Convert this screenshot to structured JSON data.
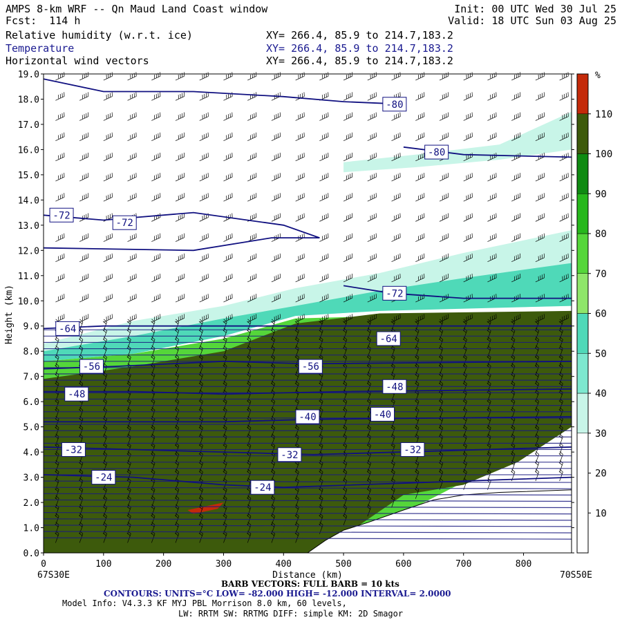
{
  "header": {
    "title": "AMPS 8-km WRF -- Qn Maud Land Coast window",
    "init": "Init: 00 UTC Wed 30 Jul 25",
    "fcst": "Fcst:  114 h",
    "valid": "Valid: 18 UTC Sun 03 Aug 25",
    "fields": [
      {
        "name": "Relative humidity (w.r.t. ice)",
        "xy": "XY= 266.4, 85.9 to 214.7,183.2"
      },
      {
        "name": "Temperature",
        "xy": "XY= 266.4, 85.9 to 214.7,183.2"
      },
      {
        "name": "Horizontal wind vectors",
        "xy": "XY= 266.4, 85.9 to 214.7,183.2"
      }
    ]
  },
  "chart_data": {
    "type": "heatmap",
    "xlabel": "Distance (km)",
    "ylabel": "Height (km)",
    "xlim": [
      0,
      880
    ],
    "ylim": [
      0,
      19
    ],
    "x_ticks": [
      0,
      100,
      200,
      300,
      400,
      500,
      600,
      700,
      800
    ],
    "y_ticks": [
      "0.0",
      "1.0",
      "2.0",
      "3.0",
      "4.0",
      "5.0",
      "6.0",
      "7.0",
      "8.0",
      "9.0",
      "10.0",
      "11.0",
      "12.0",
      "13.0",
      "14.0",
      "15.0",
      "16.0",
      "17.0",
      "18.0",
      "19.0"
    ],
    "x_start_label": "67S30E",
    "x_end_label": "70S50E",
    "colorbar": {
      "unit": "%",
      "tick_labels": [
        "10",
        "20",
        "30",
        "40",
        "50",
        "60",
        "70",
        "80",
        "90",
        "100",
        "110"
      ],
      "bins": [
        {
          "from": 0,
          "to": 30,
          "color": "#ffffff"
        },
        {
          "from": 30,
          "to": 40,
          "color": "#c8f5e8"
        },
        {
          "from": 40,
          "to": 50,
          "color": "#7de8cf"
        },
        {
          "from": 50,
          "to": 60,
          "color": "#4fd9b8"
        },
        {
          "from": 60,
          "to": 70,
          "color": "#8fe66a"
        },
        {
          "from": 70,
          "to": 80,
          "color": "#55d63a"
        },
        {
          "from": 80,
          "to": 90,
          "color": "#27b71c"
        },
        {
          "from": 90,
          "to": 100,
          "color": "#0f8a12"
        },
        {
          "from": 100,
          "to": 110,
          "color": "#3d5a0c"
        },
        {
          "from": 110,
          "to": 120,
          "color": "#c42a0a"
        }
      ]
    },
    "rh_regions": [
      {
        "level": 30,
        "color": "#c8f5e8",
        "points": [
          [
            0,
            8.3
          ],
          [
            150,
            9.2
          ],
          [
            300,
            9.8
          ],
          [
            420,
            10.5
          ],
          [
            560,
            11.1
          ],
          [
            700,
            11.9
          ],
          [
            880,
            12.8
          ],
          [
            880,
            9.8
          ],
          [
            700,
            9.7
          ],
          [
            560,
            9.6
          ],
          [
            420,
            9.4
          ],
          [
            300,
            8.7
          ],
          [
            150,
            8.1
          ],
          [
            0,
            7.9
          ]
        ]
      },
      {
        "level": 30,
        "color": "#c8f5e8",
        "points": [
          [
            500,
            15.5
          ],
          [
            620,
            15.8
          ],
          [
            760,
            16.2
          ],
          [
            880,
            17.5
          ],
          [
            880,
            16.0
          ],
          [
            760,
            15.6
          ],
          [
            620,
            15.3
          ],
          [
            500,
            15.1
          ]
        ]
      },
      {
        "level": 50,
        "color": "#4fd9b8",
        "points": [
          [
            0,
            8.0
          ],
          [
            150,
            8.6
          ],
          [
            300,
            9.3
          ],
          [
            420,
            9.8
          ],
          [
            560,
            10.4
          ],
          [
            700,
            10.9
          ],
          [
            880,
            11.5
          ],
          [
            880,
            9.8
          ],
          [
            560,
            9.6
          ],
          [
            420,
            9.4
          ],
          [
            300,
            8.6
          ],
          [
            150,
            7.9
          ],
          [
            0,
            7.6
          ]
        ]
      },
      {
        "level": 70,
        "color": "#55d63a",
        "points": [
          [
            0,
            7.6
          ],
          [
            150,
            7.9
          ],
          [
            300,
            8.5
          ],
          [
            420,
            9.3
          ],
          [
            880,
            9.6
          ],
          [
            880,
            5.0
          ],
          [
            470,
            0.0
          ],
          [
            0,
            0.0
          ]
        ]
      },
      {
        "level": 100,
        "color": "#3d5a0c",
        "points": [
          [
            0,
            6.9
          ],
          [
            150,
            7.4
          ],
          [
            300,
            8.0
          ],
          [
            420,
            9.1
          ],
          [
            560,
            9.5
          ],
          [
            880,
            9.6
          ],
          [
            880,
            5.0
          ],
          [
            790,
            3.6
          ],
          [
            700,
            2.7
          ],
          [
            600,
            2.3
          ],
          [
            520,
            1.0
          ],
          [
            480,
            0.4
          ],
          [
            440,
            0.0
          ],
          [
            0,
            0.0
          ]
        ]
      },
      {
        "level": 110,
        "color": "#c42a0a",
        "points": [
          [
            240,
            1.7
          ],
          [
            280,
            1.9
          ],
          [
            300,
            2.0
          ],
          [
            290,
            1.75
          ],
          [
            250,
            1.55
          ]
        ]
      }
    ],
    "terrain": [
      [
        440,
        0.0
      ],
      [
        470,
        0.5
      ],
      [
        500,
        0.9
      ],
      [
        540,
        1.2
      ],
      [
        600,
        1.7
      ],
      [
        650,
        2.1
      ],
      [
        700,
        2.3
      ],
      [
        760,
        2.4
      ],
      [
        880,
        2.5
      ],
      [
        880,
        0.0
      ]
    ],
    "temperature_contours": [
      {
        "label": "-80",
        "points": [
          [
            0,
            18.8
          ],
          [
            100,
            18.3
          ],
          [
            250,
            18.3
          ],
          [
            400,
            18.1
          ],
          [
            500,
            17.9
          ],
          [
            600,
            17.8
          ]
        ]
      },
      {
        "label": "-80",
        "points": [
          [
            600,
            16.1
          ],
          [
            700,
            15.8
          ],
          [
            880,
            15.7
          ]
        ]
      },
      {
        "label": "-72",
        "points": [
          [
            0,
            13.4
          ],
          [
            100,
            13.2
          ],
          [
            250,
            13.5
          ],
          [
            400,
            13.0
          ],
          [
            460,
            12.5
          ],
          [
            380,
            12.5
          ],
          [
            250,
            12.0
          ],
          [
            0,
            12.1
          ]
        ]
      },
      {
        "label": "-72",
        "points": [
          [
            500,
            10.6
          ],
          [
            580,
            10.3
          ],
          [
            700,
            10.1
          ],
          [
            880,
            10.1
          ]
        ]
      },
      {
        "label": "-64",
        "points": [
          [
            0,
            8.9
          ],
          [
            100,
            9.0
          ],
          [
            250,
            9.0
          ],
          [
            400,
            9.0
          ],
          [
            500,
            9.0
          ],
          [
            880,
            9.0
          ]
        ]
      },
      {
        "label": "-56",
        "points": [
          [
            0,
            7.3
          ],
          [
            120,
            7.4
          ],
          [
            300,
            7.6
          ],
          [
            440,
            7.5
          ],
          [
            880,
            7.6
          ]
        ]
      },
      {
        "label": "-48",
        "points": [
          [
            0,
            6.4
          ],
          [
            150,
            6.4
          ],
          [
            300,
            6.3
          ],
          [
            500,
            6.4
          ],
          [
            880,
            6.5
          ]
        ]
      },
      {
        "label": "-40",
        "points": [
          [
            0,
            5.2
          ],
          [
            150,
            5.2
          ],
          [
            300,
            5.2
          ],
          [
            450,
            5.3
          ],
          [
            880,
            5.4
          ]
        ]
      },
      {
        "label": "-32",
        "points": [
          [
            0,
            4.2
          ],
          [
            150,
            4.1
          ],
          [
            300,
            4.0
          ],
          [
            450,
            3.9
          ],
          [
            880,
            4.2
          ]
        ]
      },
      {
        "label": "-24",
        "points": [
          [
            0,
            3.1
          ],
          [
            150,
            3.0
          ],
          [
            300,
            2.7
          ],
          [
            400,
            2.6
          ],
          [
            880,
            3.0
          ]
        ]
      }
    ],
    "temperature_labels": [
      {
        "text": "-80",
        "x": 585,
        "y": 17.8
      },
      {
        "text": "-80",
        "x": 655,
        "y": 15.9
      },
      {
        "text": "-72",
        "x": 30,
        "y": 13.4
      },
      {
        "text": "-72",
        "x": 135,
        "y": 13.1
      },
      {
        "text": "-72",
        "x": 585,
        "y": 10.3
      },
      {
        "text": "-64",
        "x": 40,
        "y": 8.9
      },
      {
        "text": "-64",
        "x": 575,
        "y": 8.5
      },
      {
        "text": "-56",
        "x": 80,
        "y": 7.4
      },
      {
        "text": "-56",
        "x": 445,
        "y": 7.4
      },
      {
        "text": "-48",
        "x": 55,
        "y": 6.3
      },
      {
        "text": "-48",
        "x": 585,
        "y": 6.6
      },
      {
        "text": "-40",
        "x": 440,
        "y": 5.4
      },
      {
        "text": "-40",
        "x": 565,
        "y": 5.5
      },
      {
        "text": "-32",
        "x": 50,
        "y": 4.1
      },
      {
        "text": "-32",
        "x": 410,
        "y": 3.9
      },
      {
        "text": "-32",
        "x": 615,
        "y": 4.1
      },
      {
        "text": "-24",
        "x": 100,
        "y": 3.0
      },
      {
        "text": "-24",
        "x": 365,
        "y": 2.6
      }
    ]
  },
  "footer": {
    "barb": "BARB VECTORS: FULL BARB = 10 kts",
    "contours": "CONTOURS: UNITS=°C LOW= -82.000 HIGH= -12.000 INTERVAL= 2.0000",
    "model": "Model Info: V4.3.3 KF MYJ PBL Morrison 8.0 km, 60 levels,",
    "physics": "LW: RRTM SW: RRTMG DIFF: simple KM: 2D Smagor"
  }
}
